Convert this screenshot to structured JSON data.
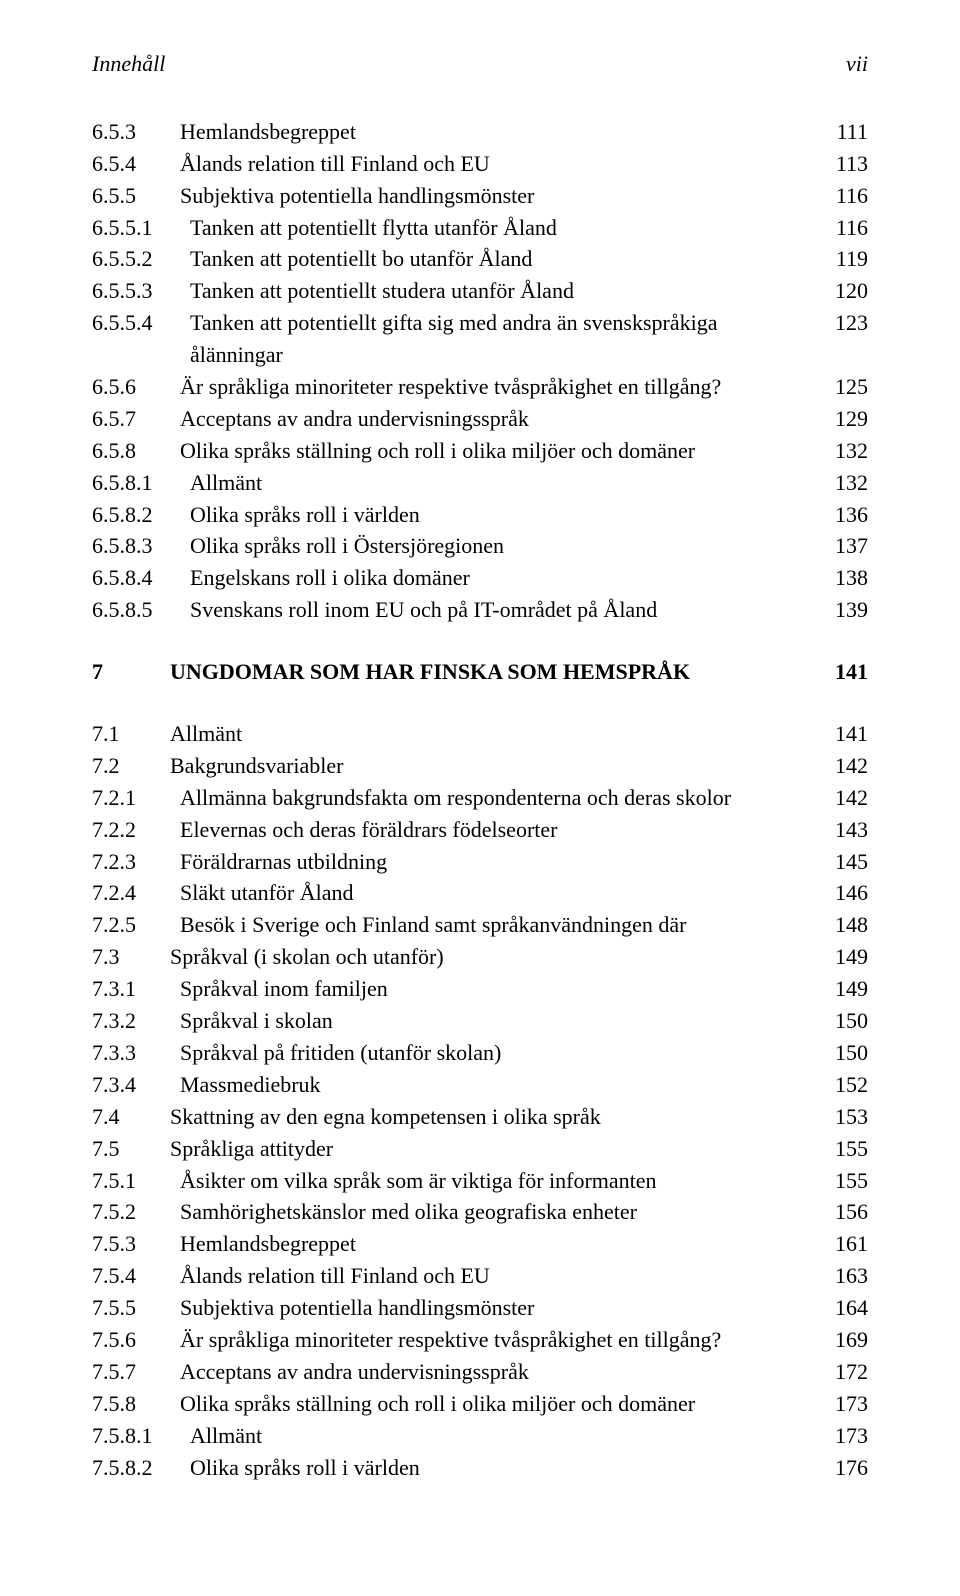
{
  "header": {
    "left": "Innehåll",
    "right": "vii"
  },
  "toc_sections": [
    {
      "rows": [
        {
          "num": "6.5.3",
          "title": "Hemlandsbegreppet",
          "page": "111",
          "depth": 3
        },
        {
          "num": "6.5.4",
          "title": "Ålands relation till Finland och EU",
          "page": "113",
          "depth": 3
        },
        {
          "num": "6.5.5",
          "title": "Subjektiva potentiella handlingsmönster",
          "page": "116",
          "depth": 3
        },
        {
          "num": "6.5.5.1",
          "title": "Tanken att potentiellt flytta utanför Åland",
          "page": "116",
          "depth": 4
        },
        {
          "num": "6.5.5.2",
          "title": "Tanken att potentiellt bo utanför Åland",
          "page": "119",
          "depth": 4
        },
        {
          "num": "6.5.5.3",
          "title": "Tanken att potentiellt studera utanför Åland",
          "page": "120",
          "depth": 4
        },
        {
          "num": "6.5.5.4",
          "title": "Tanken att potentiellt gifta sig med andra än svenskspråkiga ålänningar",
          "page": "123",
          "depth": 4
        },
        {
          "num": "6.5.6",
          "title": "Är språkliga minoriteter respektive tvåspråkighet en tillgång?",
          "page": "125",
          "depth": 3
        },
        {
          "num": "6.5.7",
          "title": "Acceptans av andra undervisningsspråk",
          "page": "129",
          "depth": 3
        },
        {
          "num": "6.5.8",
          "title": "Olika språks ställning och roll i olika miljöer och domäner",
          "page": "132",
          "depth": 3
        },
        {
          "num": "6.5.8.1",
          "title": "Allmänt",
          "page": "132",
          "depth": 4
        },
        {
          "num": "6.5.8.2",
          "title": "Olika språks roll i världen",
          "page": "136",
          "depth": 4
        },
        {
          "num": "6.5.8.3",
          "title": "Olika språks roll i Östersjöregionen",
          "page": "137",
          "depth": 4
        },
        {
          "num": "6.5.8.4",
          "title": "Engelskans roll i olika domäner",
          "page": "138",
          "depth": 4
        },
        {
          "num": "6.5.8.5",
          "title": "Svenskans roll inom EU och på IT-området på Åland",
          "page": "139",
          "depth": 4
        }
      ]
    },
    {
      "heading": {
        "num": "7",
        "title": "UNGDOMAR SOM HAR FINSKA SOM HEMSPRÅK",
        "page": "141",
        "depth": 1
      },
      "rows": [
        {
          "num": "7.1",
          "title": "Allmänt",
          "page": "141",
          "depth": 2
        },
        {
          "num": "7.2",
          "title": "Bakgrundsvariabler",
          "page": "142",
          "depth": 2
        },
        {
          "num": "7.2.1",
          "title": "Allmänna bakgrundsfakta om respondenterna och deras skolor",
          "page": "142",
          "depth": 3
        },
        {
          "num": "7.2.2",
          "title": "Elevernas och deras föräldrars födelseorter",
          "page": "143",
          "depth": 3
        },
        {
          "num": "7.2.3",
          "title": "Föräldrarnas utbildning",
          "page": "145",
          "depth": 3
        },
        {
          "num": "7.2.4",
          "title": "Släkt utanför Åland",
          "page": "146",
          "depth": 3
        },
        {
          "num": "7.2.5",
          "title": "Besök i Sverige och Finland samt språkanvändningen där",
          "page": "148",
          "depth": 3
        },
        {
          "num": "7.3",
          "title": "Språkval (i skolan och utanför)",
          "page": "149",
          "depth": 2
        },
        {
          "num": "7.3.1",
          "title": "Språkval inom familjen",
          "page": "149",
          "depth": 3
        },
        {
          "num": "7.3.2",
          "title": "Språkval i skolan",
          "page": "150",
          "depth": 3
        },
        {
          "num": "7.3.3",
          "title": "Språkval på fritiden (utanför skolan)",
          "page": "150",
          "depth": 3
        },
        {
          "num": "7.3.4",
          "title": "Massmediebruk",
          "page": "152",
          "depth": 3
        },
        {
          "num": "7.4",
          "title": "Skattning av den egna kompetensen i olika språk",
          "page": "153",
          "depth": 2
        },
        {
          "num": "7.5",
          "title": "Språkliga attityder",
          "page": "155",
          "depth": 2
        },
        {
          "num": "7.5.1",
          "title": "Åsikter om vilka språk som är viktiga för informanten",
          "page": "155",
          "depth": 3
        },
        {
          "num": "7.5.2",
          "title": "Samhörighetskänslor med olika geografiska enheter",
          "page": "156",
          "depth": 3
        },
        {
          "num": "7.5.3",
          "title": "Hemlandsbegreppet",
          "page": "161",
          "depth": 3
        },
        {
          "num": "7.5.4",
          "title": "Ålands relation till Finland och EU",
          "page": "163",
          "depth": 3
        },
        {
          "num": "7.5.5",
          "title": "Subjektiva potentiella handlingsmönster",
          "page": "164",
          "depth": 3
        },
        {
          "num": "7.5.6",
          "title": "Är språkliga minoriteter respektive tvåspråkighet en tillgång?",
          "page": "169",
          "depth": 3
        },
        {
          "num": "7.5.7",
          "title": "Acceptans av andra undervisningsspråk",
          "page": "172",
          "depth": 3
        },
        {
          "num": "7.5.8",
          "title": "Olika språks ställning och roll i olika miljöer och domäner",
          "page": "173",
          "depth": 3
        },
        {
          "num": "7.5.8.1",
          "title": "Allmänt",
          "page": "173",
          "depth": 4
        },
        {
          "num": "7.5.8.2",
          "title": "Olika språks roll i världen",
          "page": "176",
          "depth": 4
        }
      ]
    }
  ]
}
